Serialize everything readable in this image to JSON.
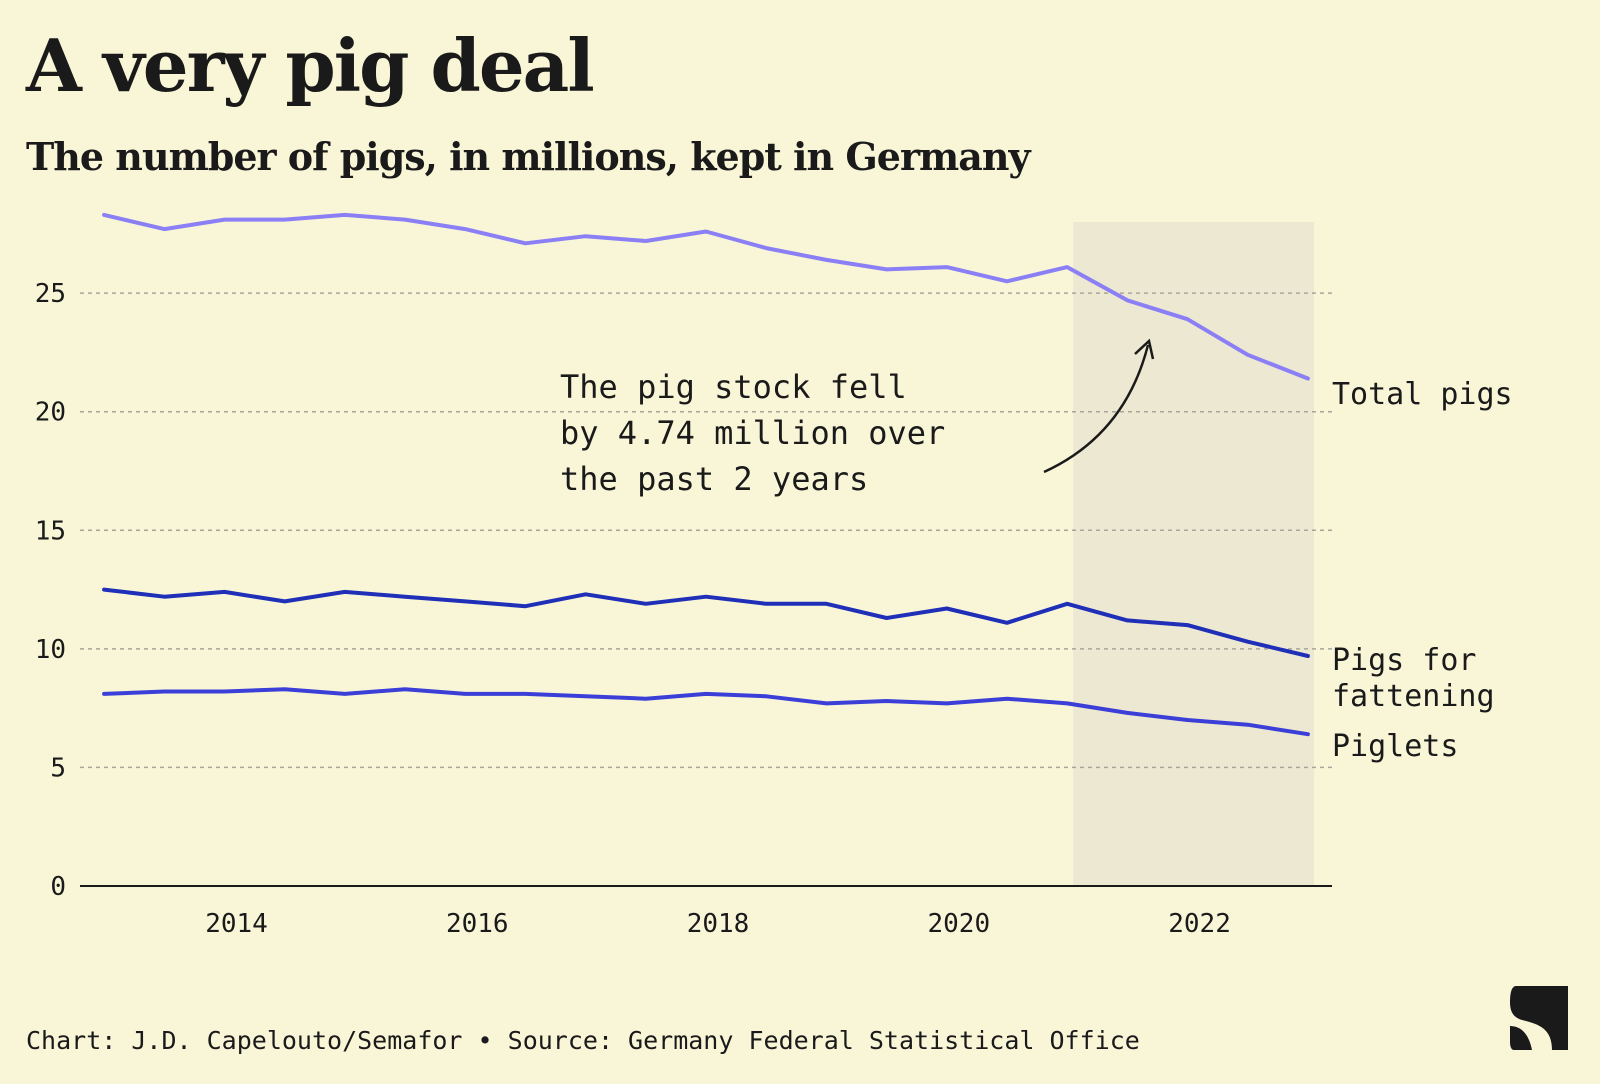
{
  "colors": {
    "background": "#f9f6d8",
    "highlight_band": "#ede8d2",
    "grid": "#a8a69a",
    "axis": "#1a1a1a",
    "total_pigs": "#8b7ff5",
    "pigs_for_fattening": "#1f2fb8",
    "piglets": "#3b3fd8"
  },
  "chart_data": {
    "type": "line",
    "title": "A very pig deal",
    "subtitle": "The number of pigs, in millions, kept in Germany",
    "xlabel": "",
    "ylabel": "",
    "x": [
      2012.9,
      2013.4,
      2013.9,
      2014.4,
      2014.9,
      2015.4,
      2015.9,
      2016.4,
      2016.9,
      2017.4,
      2017.9,
      2018.4,
      2018.9,
      2019.4,
      2019.9,
      2020.4,
      2020.9,
      2021.4,
      2021.9,
      2022.4,
      2022.9
    ],
    "xlim": [
      2012.7,
      2023.1
    ],
    "ylim": [
      0,
      28
    ],
    "x_ticks": [
      "2014",
      "2016",
      "2018",
      "2020",
      "2022"
    ],
    "y_ticks": [
      "0",
      "5",
      "10",
      "15",
      "20",
      "25"
    ],
    "grid": true,
    "highlight_range": [
      2020.95,
      2022.95
    ],
    "series": [
      {
        "name": "Total pigs",
        "color": "#8b7ff5",
        "values": [
          28.3,
          27.7,
          28.1,
          28.1,
          28.3,
          28.1,
          27.7,
          27.1,
          27.4,
          27.2,
          27.6,
          26.9,
          26.4,
          26.0,
          26.1,
          25.5,
          26.1,
          24.7,
          23.9,
          22.4,
          21.4
        ]
      },
      {
        "name": "Pigs for fattening",
        "color": "#1f2fb8",
        "values": [
          12.5,
          12.2,
          12.4,
          12.0,
          12.4,
          12.2,
          12.0,
          11.8,
          12.3,
          11.9,
          12.2,
          11.9,
          11.9,
          11.3,
          11.7,
          11.1,
          11.9,
          11.2,
          11.0,
          10.3,
          9.7
        ]
      },
      {
        "name": "Piglets",
        "color": "#3b3fd8",
        "values": [
          8.1,
          8.2,
          8.2,
          8.3,
          8.1,
          8.3,
          8.1,
          8.1,
          8.0,
          7.9,
          8.1,
          8.0,
          7.7,
          7.8,
          7.7,
          7.9,
          7.7,
          7.3,
          7.0,
          6.8,
          6.4
        ]
      }
    ],
    "series_labels": {
      "total": "Total pigs",
      "fattening_line1": "Pigs for",
      "fattening_line2": "fattening",
      "piglets": "Piglets"
    },
    "annotation": {
      "line1": "The pig stock fell",
      "line2": "by 4.74 million over",
      "line3": "the past 2 years"
    }
  },
  "footer": {
    "credit": "Chart: J.D. Capelouto/Semafor • Source: Germany Federal Statistical Office"
  },
  "logo": {
    "icon": "semafor-s-logo"
  }
}
